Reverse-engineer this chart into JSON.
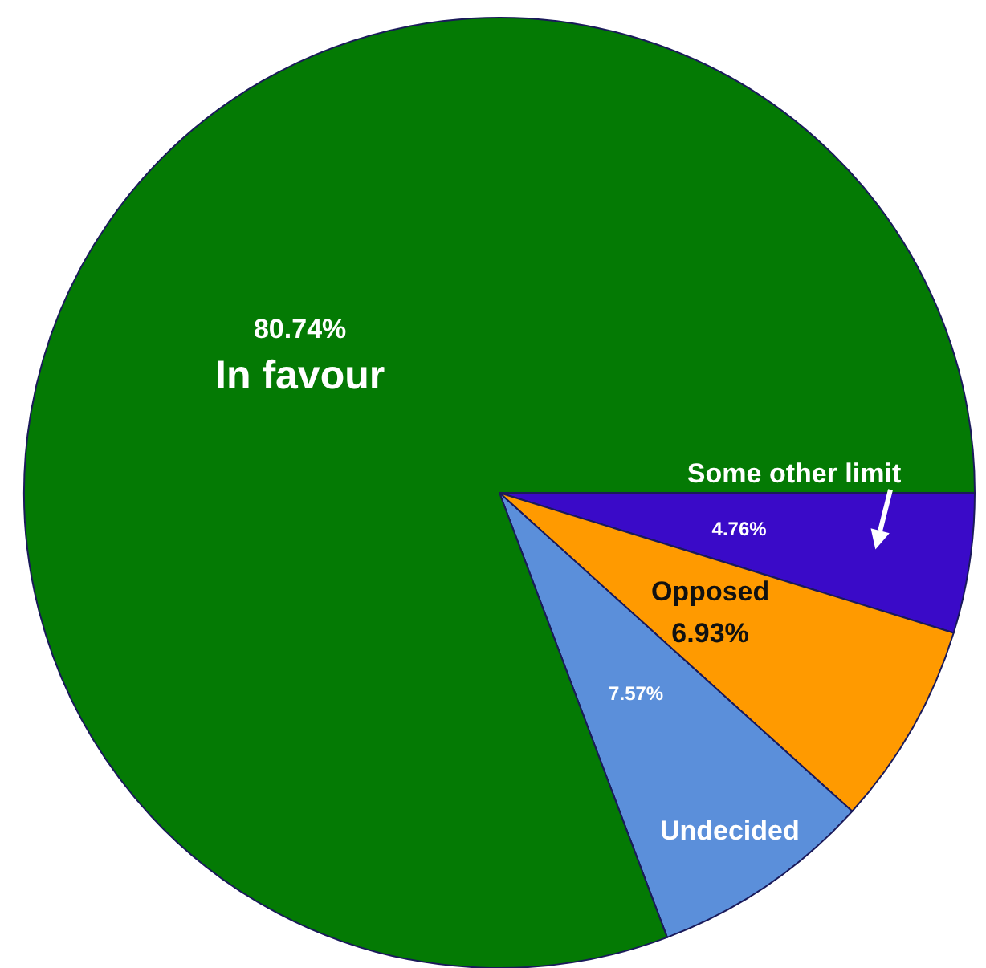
{
  "chart_data": {
    "type": "pie",
    "categories": [
      "Some other limit",
      "Opposed",
      "Undecided",
      "In favour"
    ],
    "values": [
      4.76,
      6.93,
      7.57,
      80.74
    ],
    "colors": [
      "#3a0ac8",
      "#ff9a00",
      "#5b8fda",
      "#047a04"
    ],
    "value_labels": [
      "4.76%",
      "6.93%",
      "7.57%",
      "80.74%"
    ]
  }
}
